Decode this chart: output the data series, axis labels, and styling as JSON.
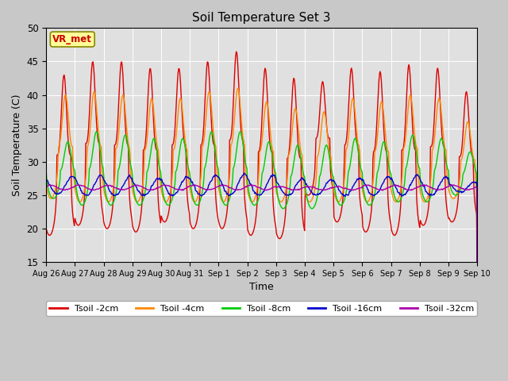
{
  "title": "Soil Temperature Set 3",
  "xlabel": "Time",
  "ylabel": "Soil Temperature (C)",
  "ylim": [
    15,
    50
  ],
  "yticks": [
    15,
    20,
    25,
    30,
    35,
    40,
    45,
    50
  ],
  "fig_facecolor": "#c8c8c8",
  "plot_bg_color": "#e0e0e0",
  "colors": {
    "Tsoil -2cm": "#dd0000",
    "Tsoil -4cm": "#ff8800",
    "Tsoil -8cm": "#00cc00",
    "Tsoil -16cm": "#0000cc",
    "Tsoil -32cm": "#aa00aa"
  },
  "annotation_text": "VR_met",
  "annotation_bg": "#ffff99",
  "annotation_border": "#888800",
  "annotation_text_color": "#cc0000",
  "num_days": 15,
  "x_tick_labels": [
    "Aug 26",
    "Aug 27",
    "Aug 28",
    "Aug 29",
    "Aug 30",
    "Aug 31",
    "Sep 1",
    "Sep 2",
    "Sep 3",
    "Sep 4",
    "Sep 5",
    "Sep 6",
    "Sep 7",
    "Sep 8",
    "Sep 9",
    "Sep 10"
  ],
  "grid_color": "#ffffff",
  "linewidth": 1.0
}
